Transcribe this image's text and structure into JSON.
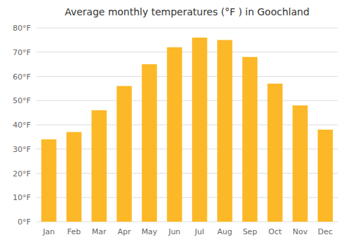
{
  "chart_data": {
    "type": "bar",
    "title": "Average monthly temperatures (°F ) in Goochland",
    "categories": [
      "Jan",
      "Feb",
      "Mar",
      "Apr",
      "May",
      "Jun",
      "Jul",
      "Aug",
      "Sep",
      "Oct",
      "Nov",
      "Dec"
    ],
    "values": [
      34,
      37,
      46,
      56,
      65,
      72,
      76,
      75,
      68,
      57,
      48,
      38
    ],
    "color": "#FDB827",
    "ylim": [
      0,
      80
    ],
    "yticks": [
      {
        "value": 0,
        "label": "0°F"
      },
      {
        "value": 10,
        "label": "10°F"
      },
      {
        "value": 20,
        "label": "20°F"
      },
      {
        "value": 30,
        "label": "30°F"
      },
      {
        "value": 40,
        "label": "40°F"
      },
      {
        "value": 50,
        "label": "50°F"
      },
      {
        "value": 60,
        "label": "60°F"
      },
      {
        "value": 70,
        "label": "70°F"
      },
      {
        "value": 80,
        "label": "80°F"
      }
    ],
    "grid": true
  }
}
